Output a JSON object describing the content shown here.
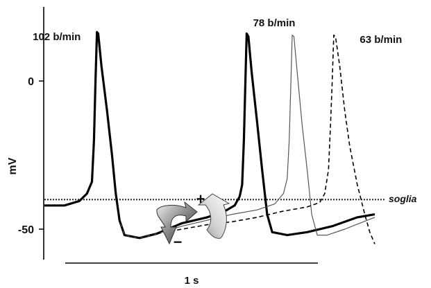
{
  "chart_data": {
    "type": "line",
    "ylabel": "mV",
    "yticks": [
      {
        "value": 0,
        "label": "0"
      },
      {
        "value": -50,
        "label": "-50"
      }
    ],
    "ylim": [
      -60,
      17
    ],
    "xlim": [
      0,
      1.32
    ],
    "threshold": {
      "value": -40,
      "label": "soglia"
    },
    "scalebar": {
      "length": 1,
      "label": "1 s"
    },
    "series": [
      {
        "name": "102 b/min",
        "label_position": "above-peak",
        "style": "thick",
        "color": "#000000",
        "points": [
          [
            0,
            -42
          ],
          [
            0.08,
            -42
          ],
          [
            0.14,
            -40.5
          ],
          [
            0.17,
            -38
          ],
          [
            0.19,
            -34
          ],
          [
            0.198,
            -20
          ],
          [
            0.204,
            0
          ],
          [
            0.21,
            16.5
          ],
          [
            0.215,
            16
          ],
          [
            0.228,
            5
          ],
          [
            0.25,
            -10
          ],
          [
            0.27,
            -25
          ],
          [
            0.285,
            -38
          ],
          [
            0.3,
            -47
          ],
          [
            0.32,
            -52
          ],
          [
            0.38,
            -53
          ],
          [
            0.45,
            -51.5
          ],
          [
            0.55,
            -48
          ],
          [
            0.65,
            -46
          ],
          [
            0.72,
            -44
          ],
          [
            0.76,
            -42
          ],
          [
            0.78,
            -39
          ],
          [
            0.79,
            -35
          ],
          [
            0.797,
            -20
          ],
          [
            0.803,
            0
          ],
          [
            0.808,
            16
          ],
          [
            0.815,
            15
          ],
          [
            0.828,
            3
          ],
          [
            0.85,
            -14
          ],
          [
            0.87,
            -30
          ],
          [
            0.89,
            -45
          ],
          [
            0.91,
            -51
          ],
          [
            0.97,
            -52
          ],
          [
            1.05,
            -51
          ],
          [
            1.15,
            -49
          ],
          [
            1.25,
            -46
          ],
          [
            1.32,
            -45
          ]
        ]
      },
      {
        "name": "78 b/min",
        "label_position": "above-peak",
        "style": "thin",
        "color": "#555555",
        "points": [
          [
            0.3,
            -47
          ],
          [
            0.32,
            -52
          ],
          [
            0.38,
            -53
          ],
          [
            0.45,
            -51.5
          ],
          [
            0.55,
            -49
          ],
          [
            0.65,
            -47
          ],
          [
            0.75,
            -45
          ],
          [
            0.85,
            -43.5
          ],
          [
            0.92,
            -41.5
          ],
          [
            0.955,
            -38
          ],
          [
            0.97,
            -33
          ],
          [
            0.978,
            -20
          ],
          [
            0.985,
            0
          ],
          [
            0.99,
            15.5
          ],
          [
            0.997,
            15
          ],
          [
            1.01,
            3
          ],
          [
            1.03,
            -15
          ],
          [
            1.05,
            -30
          ],
          [
            1.068,
            -45
          ],
          [
            1.09,
            -52
          ],
          [
            1.13,
            -52
          ],
          [
            1.2,
            -50
          ],
          [
            1.26,
            -48
          ],
          [
            1.32,
            -46
          ]
        ]
      },
      {
        "name": "63 b/min",
        "label_position": "above-peak",
        "style": "dashed",
        "color": "#000000",
        "points": [
          [
            0.3,
            -47
          ],
          [
            0.32,
            -52
          ],
          [
            0.38,
            -53
          ],
          [
            0.45,
            -51.5
          ],
          [
            0.55,
            -50
          ],
          [
            0.65,
            -48.5
          ],
          [
            0.75,
            -47.5
          ],
          [
            0.85,
            -46
          ],
          [
            0.95,
            -44
          ],
          [
            1.05,
            -42.5
          ],
          [
            1.1,
            -41
          ],
          [
            1.12,
            -38
          ],
          [
            1.135,
            -30
          ],
          [
            1.143,
            -15
          ],
          [
            1.15,
            0
          ],
          [
            1.156,
            15.5
          ],
          [
            1.163,
            15
          ],
          [
            1.18,
            5
          ],
          [
            1.2,
            -10
          ],
          [
            1.22,
            -22
          ],
          [
            1.25,
            -35
          ],
          [
            1.28,
            -45
          ],
          [
            1.3,
            -51
          ],
          [
            1.32,
            -55
          ]
        ]
      }
    ],
    "arrows": [
      {
        "sign": "−",
        "color": "gray-gradient-dark"
      },
      {
        "sign": "+",
        "color": "gray-gradient-light"
      }
    ]
  }
}
